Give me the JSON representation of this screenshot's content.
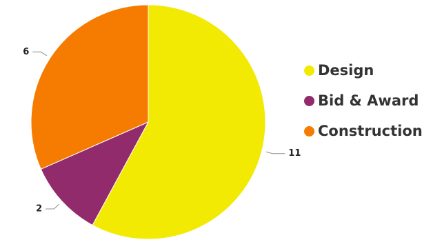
{
  "chart_data": {
    "type": "pie",
    "title": "",
    "categories": [
      "Design",
      "Bid & Award",
      "Construction"
    ],
    "values": [
      11,
      2,
      6
    ],
    "colors": [
      "#f2ea02",
      "#922b6c",
      "#f57c00"
    ],
    "data_labels": [
      "11",
      "2",
      "6"
    ],
    "legend": {
      "placement": "right",
      "entries": [
        "Design",
        "Bid & Award",
        "Construction"
      ]
    },
    "start_angle_deg": 0,
    "direction": "clockwise",
    "slice_border_color": "#ffffff"
  }
}
